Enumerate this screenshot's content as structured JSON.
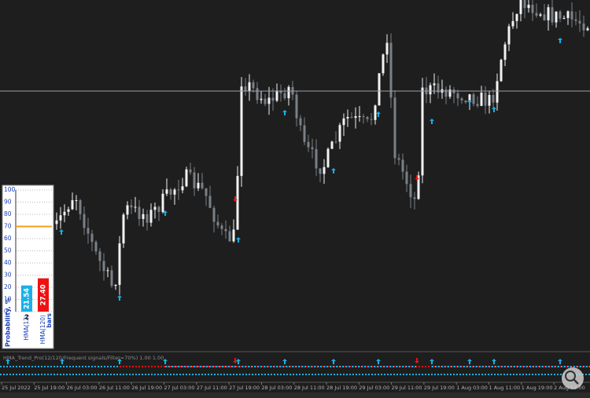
{
  "indicator_label": "HMA_Trend_Pro(12/120/Frequent signals/Filter=70%) 1.00 1.00",
  "time_axis": [
    "25 Jul 2022",
    "25 Jul 19:00",
    "26 Jul 03:00",
    "26 Jul 11:00",
    "26 Jul 19:00",
    "27 Jul 03:00",
    "27 Jul 11:00",
    "27 Jul 19:00",
    "28 Jul 03:00",
    "28 Jul 11:00",
    "28 Jul 19:00",
    "29 Jul 03:00",
    "29 Jul 11:00",
    "29 Jul 19:00",
    "1 Aug 03:00",
    "1 Aug 11:00",
    "1 Aug 19:00",
    "2 Aug 03:00"
  ],
  "chart_data": {
    "type": "bar",
    "title": "Probability, %",
    "categories": [
      "HMA(12)",
      "HMA(120)"
    ],
    "values": [
      21.54,
      27.4
    ],
    "value_labels": [
      "21.54",
      "27.40"
    ],
    "colors": [
      "#1ab0e8",
      "#ee1111"
    ],
    "annotations": [
      "2",
      "bars"
    ],
    "threshold": 70,
    "threshold_color": "#f0a020",
    "ylim": [
      0,
      100
    ],
    "yticks": [
      0,
      10,
      20,
      30,
      40,
      50,
      60,
      70,
      80,
      90,
      100
    ],
    "grid": true
  }
}
